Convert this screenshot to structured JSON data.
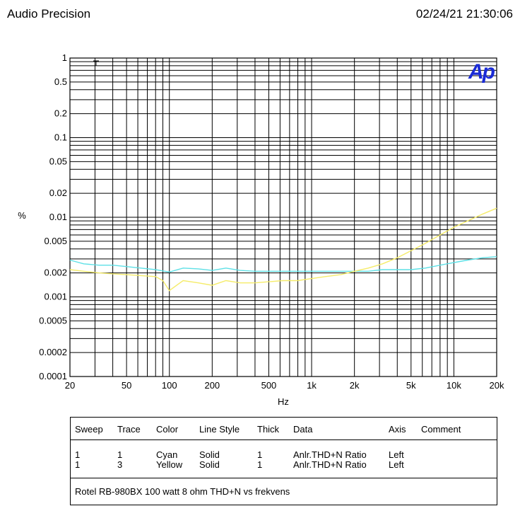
{
  "header": {
    "left": "Audio Precision",
    "right": "02/24/21 21:30:06"
  },
  "logo_text": "Ap",
  "chart_data": {
    "type": "line",
    "xlabel": "Hz",
    "ylabel": "%",
    "xscale": "log",
    "yscale": "log",
    "xlim": [
      20,
      20000
    ],
    "ylim": [
      0.0001,
      1
    ],
    "grid": true,
    "x_tick_labels": [
      {
        "value": 20,
        "label": "20"
      },
      {
        "value": 50,
        "label": "50"
      },
      {
        "value": 100,
        "label": "100"
      },
      {
        "value": 200,
        "label": "200"
      },
      {
        "value": 500,
        "label": "500"
      },
      {
        "value": 1000,
        "label": "1k"
      },
      {
        "value": 2000,
        "label": "2k"
      },
      {
        "value": 5000,
        "label": "5k"
      },
      {
        "value": 10000,
        "label": "10k"
      },
      {
        "value": 20000,
        "label": "20k"
      }
    ],
    "y_tick_labels": [
      {
        "value": 1,
        "label": "1"
      },
      {
        "value": 0.5,
        "label": "0.5"
      },
      {
        "value": 0.2,
        "label": "0.2"
      },
      {
        "value": 0.1,
        "label": "0.1"
      },
      {
        "value": 0.05,
        "label": "0.05"
      },
      {
        "value": 0.02,
        "label": "0.02"
      },
      {
        "value": 0.01,
        "label": "0.01"
      },
      {
        "value": 0.005,
        "label": "0.005"
      },
      {
        "value": 0.002,
        "label": "0.002"
      },
      {
        "value": 0.001,
        "label": "0.001"
      },
      {
        "value": 0.0005,
        "label": "0.0005"
      },
      {
        "value": 0.0002,
        "label": "0.0002"
      },
      {
        "value": 0.0001,
        "label": "0.0001"
      }
    ],
    "series": [
      {
        "color": "#5ee0e6",
        "x": [
          20,
          25,
          32,
          40,
          50,
          63,
          80,
          100,
          125,
          160,
          200,
          250,
          315,
          400,
          500,
          630,
          800,
          1000,
          1250,
          1600,
          2000,
          2500,
          3150,
          4000,
          5000,
          6300,
          8000,
          10000,
          12500,
          16000,
          20000
        ],
        "y": [
          0.0029,
          0.0026,
          0.0025,
          0.0025,
          0.0024,
          0.0023,
          0.0022,
          0.00205,
          0.0023,
          0.00225,
          0.00215,
          0.0023,
          0.00215,
          0.0021,
          0.0021,
          0.0021,
          0.0021,
          0.0021,
          0.0021,
          0.0021,
          0.0021,
          0.0021,
          0.0022,
          0.0022,
          0.0022,
          0.0023,
          0.0025,
          0.0027,
          0.0029,
          0.0031,
          0.0032
        ]
      },
      {
        "color": "#f5ec6a",
        "x": [
          20,
          25,
          32,
          40,
          50,
          63,
          80,
          90,
          100,
          125,
          160,
          200,
          250,
          315,
          400,
          500,
          630,
          800,
          1000,
          1250,
          1600,
          2000,
          2500,
          3150,
          4000,
          5000,
          6300,
          8000,
          10000,
          12500,
          16000,
          20000
        ],
        "y": [
          0.0022,
          0.0021,
          0.002,
          0.00195,
          0.0019,
          0.00185,
          0.0018,
          0.0016,
          0.0012,
          0.0016,
          0.0015,
          0.0014,
          0.0016,
          0.0015,
          0.0015,
          0.00155,
          0.0016,
          0.0016,
          0.0017,
          0.0018,
          0.0019,
          0.0021,
          0.0023,
          0.0026,
          0.0031,
          0.0038,
          0.0047,
          0.006,
          0.0075,
          0.009,
          0.011,
          0.013
        ]
      }
    ]
  },
  "legend": {
    "headers": [
      "Sweep",
      "Trace",
      "Color",
      "Line Style",
      "Thick",
      "Data",
      "Axis",
      "Comment"
    ],
    "rows": [
      [
        "1",
        "1",
        "Cyan",
        "Solid",
        "1",
        "Anlr.THD+N Ratio",
        "Left",
        ""
      ],
      [
        "1",
        "3",
        "Yellow",
        "Solid",
        "1",
        "Anlr.THD+N Ratio",
        "Left",
        ""
      ]
    ],
    "comment": "Rotel RB-980BX 100 watt 8 ohm THD+N vs frekvens"
  }
}
